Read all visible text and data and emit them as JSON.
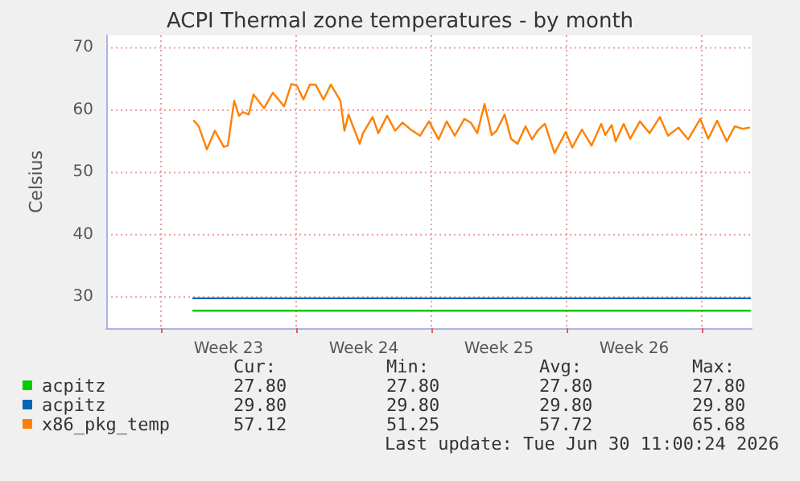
{
  "chart_data": {
    "type": "line",
    "title": "ACPI Thermal zone temperatures - by month",
    "ylabel": "Celsius",
    "x": [
      "2026-06-01T16:00",
      "2026-06-30T12:00"
    ],
    "xlim": [
      "2026-05-28T04:00",
      "2026-06-30T14:00"
    ],
    "xticks": [
      {
        "value": "2026-05-31",
        "label": null
      },
      {
        "value": "2026-06-03T12:00",
        "label": "Week 23"
      },
      {
        "value": "2026-06-07",
        "label": null
      },
      {
        "value": "2026-06-10T12:00",
        "label": "Week 24"
      },
      {
        "value": "2026-06-14",
        "label": null
      },
      {
        "value": "2026-06-17T12:00",
        "label": "Week 25"
      },
      {
        "value": "2026-06-21",
        "label": null
      },
      {
        "value": "2026-06-24T12:00",
        "label": "Week 26"
      },
      {
        "value": "2026-06-28",
        "label": null
      }
    ],
    "ylim": [
      25,
      72
    ],
    "yticks": [
      30,
      40,
      50,
      60,
      70
    ],
    "grid": true,
    "legend": "bottom left",
    "marker": "none",
    "line_style": "solid",
    "series": [
      {
        "name": "acpitz",
        "color": "#00cc00",
        "values": [
          27.8,
          27.8
        ]
      },
      {
        "name": "acpitz",
        "color": "#0066b3",
        "values": [
          29.8,
          29.8
        ]
      },
      {
        "name": "x86_pkg_temp",
        "color": "#ff8000",
        "x": [
          "2026-06-01T17:00",
          "2026-06-01T23:00",
          "2026-06-02T09:00",
          "2026-06-02T19:00",
          "2026-06-03T06:00",
          "2026-06-03T11:00",
          "2026-06-03T19:00",
          "2026-06-04T01:00",
          "2026-06-04T06:00",
          "2026-06-04T13:00",
          "2026-06-04T19:00",
          "2026-06-05T08:00",
          "2026-06-05T19:00",
          "2026-06-06T09:00",
          "2026-06-06T18:00",
          "2026-06-07T01:00",
          "2026-06-07T09:00",
          "2026-06-07T17:00",
          "2026-06-08T00:00",
          "2026-06-08T10:00",
          "2026-06-08T19:00",
          "2026-06-09T07:00",
          "2026-06-09T12:00",
          "2026-06-09T17:00",
          "2026-06-10T07:00",
          "2026-06-10T11:00",
          "2026-06-10T23:00",
          "2026-06-11T06:00",
          "2026-06-11T17:00",
          "2026-06-12T03:00",
          "2026-06-12T12:00",
          "2026-06-12T22:00",
          "2026-06-13T10:00",
          "2026-06-13T21:00",
          "2026-06-14T09:00",
          "2026-06-14T19:00",
          "2026-06-15T05:00",
          "2026-06-15T17:00",
          "2026-06-16T01:00",
          "2026-06-16T09:00",
          "2026-06-16T18:00",
          "2026-06-17T03:00",
          "2026-06-17T09:00",
          "2026-06-17T19:00",
          "2026-06-18T03:00",
          "2026-06-18T11:00",
          "2026-06-18T21:00",
          "2026-06-19T05:00",
          "2026-06-19T12:00",
          "2026-06-19T21:00",
          "2026-06-20T09:00",
          "2026-06-20T23:00",
          "2026-06-21T07:00",
          "2026-06-21T19:00",
          "2026-06-22T07:00",
          "2026-06-22T19:00",
          "2026-06-23T00:00",
          "2026-06-23T08:00",
          "2026-06-23T13:00",
          "2026-06-23T23:00",
          "2026-06-24T07:00",
          "2026-06-24T19:00",
          "2026-06-25T07:00",
          "2026-06-25T20:00",
          "2026-06-26T06:00",
          "2026-06-26T19:00",
          "2026-06-27T07:00",
          "2026-06-27T22:00",
          "2026-06-28T08:00",
          "2026-06-28T19:00",
          "2026-06-29T07:00",
          "2026-06-29T17:00",
          "2026-06-30T03:00",
          "2026-06-30T11:00"
        ],
        "values": [
          58.3,
          57.4,
          53.7,
          56.7,
          54.1,
          54.3,
          61.5,
          59.1,
          59.7,
          59.3,
          62.5,
          60.3,
          62.8,
          60.6,
          64.2,
          63.9,
          61.7,
          64.1,
          64.1,
          61.7,
          64.1,
          61.5,
          56.7,
          59.3,
          54.6,
          56.3,
          58.9,
          56.3,
          59.1,
          56.7,
          58.0,
          56.9,
          55.9,
          58.2,
          55.3,
          58.2,
          55.9,
          58.6,
          58.0,
          56.3,
          61.0,
          56.0,
          56.7,
          59.3,
          55.4,
          54.6,
          57.4,
          55.3,
          56.7,
          57.8,
          53.1,
          56.5,
          54.0,
          56.9,
          54.3,
          57.8,
          56.0,
          57.6,
          55.0,
          57.8,
          55.4,
          58.2,
          56.3,
          58.9,
          55.9,
          57.2,
          55.3,
          58.6,
          55.4,
          58.3,
          55.0,
          57.4,
          57.0,
          57.2
        ]
      }
    ],
    "annotations": [
      "Cur:",
      "Min:",
      "Avg:",
      "Max:",
      "27.80",
      "27.80",
      "27.80",
      "27.80",
      "29.80",
      "29.80",
      "29.80",
      "29.80",
      "57.12",
      "51.25",
      "57.72",
      "65.68",
      "Last update: Tue Jun 30 11:00:24 2026"
    ]
  }
}
